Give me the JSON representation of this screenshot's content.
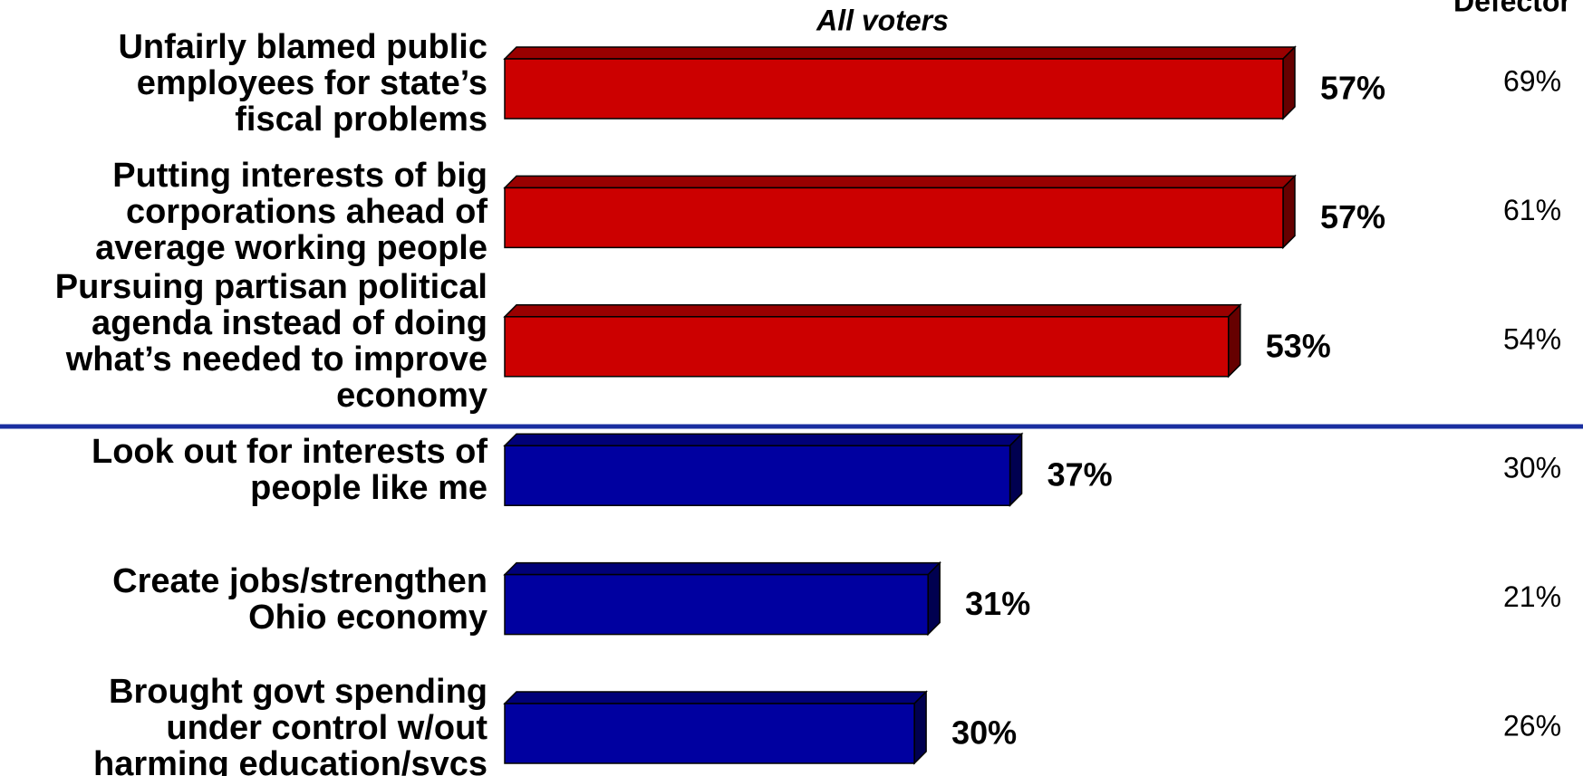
{
  "chart_data": {
    "type": "bar",
    "categories": [
      "Unfairly blamed public\nemployees for state’s\nfiscal problems",
      "Putting interests of big\ncorporations ahead of\naverage working people",
      "Pursuing partisan political\nagenda instead of doing\nwhat’s needed to improve\neconomy",
      "Look out for interests of\npeople like me",
      "Create jobs/strengthen\nOhio economy",
      "Brought govt spending\nunder control w/out\nharming education/svcs"
    ],
    "series": [
      {
        "name": "All voters",
        "values": [
          57,
          57,
          53,
          37,
          31,
          30
        ],
        "value_labels": [
          "57%",
          "57%",
          "53%",
          "37%",
          "31%",
          "30%"
        ],
        "colors": [
          "#cc0000",
          "#cc0000",
          "#cc0000",
          "#0000a0",
          "#0000a0",
          "#0000a0"
        ]
      },
      {
        "name": "Defector",
        "values": [
          69,
          61,
          54,
          30,
          21,
          26
        ],
        "value_labels": [
          "69%",
          "61%",
          "54%",
          "30%",
          "21%",
          "26%"
        ]
      }
    ]
  }
}
